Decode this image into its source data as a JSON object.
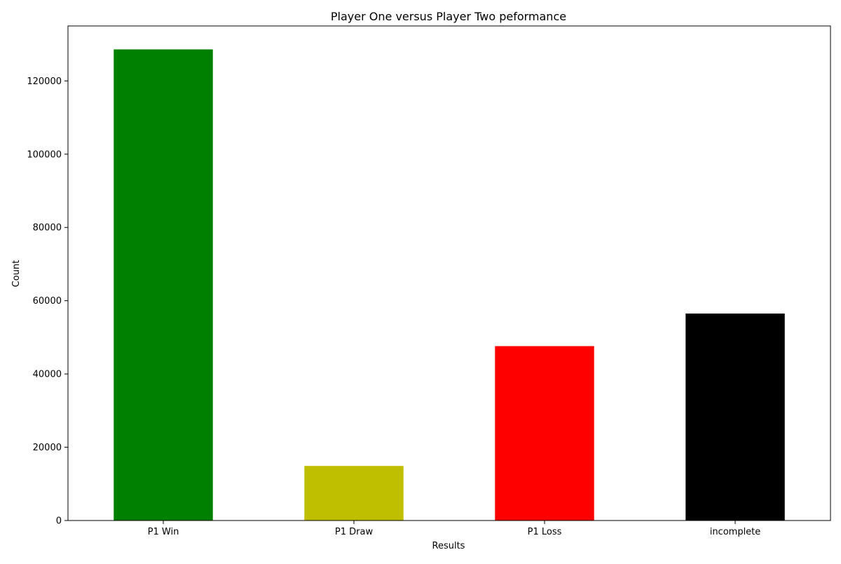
{
  "chart_data": {
    "type": "bar",
    "title": "Player One versus Player Two peformance",
    "xlabel": "Results",
    "ylabel": "Count",
    "categories": [
      "P1 Win",
      "P1 Draw",
      "P1 Loss",
      "incomplete"
    ],
    "values": [
      128600,
      14900,
      47600,
      56500
    ],
    "colors": [
      "#008000",
      "#bfbf00",
      "#ff0000",
      "#000000"
    ],
    "ylim": [
      0,
      135000
    ],
    "yticks": [
      0,
      20000,
      40000,
      60000,
      80000,
      100000,
      120000
    ],
    "ytick_labels": [
      "0",
      "20000",
      "40000",
      "60000",
      "80000",
      "100000",
      "120000"
    ],
    "grid": false,
    "legend": "none"
  }
}
